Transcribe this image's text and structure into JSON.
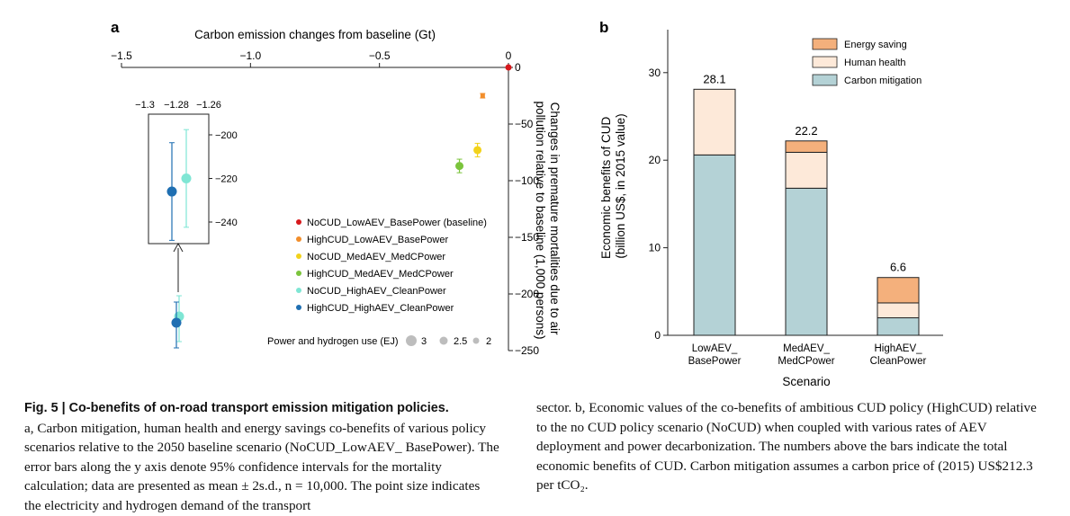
{
  "panel_a_letter": "a",
  "panel_b_letter": "b",
  "chart_data": [
    {
      "type": "scatter",
      "panel": "a",
      "xlabel": "Carbon emission changes from baseline (Gt)",
      "ylabel": "Changes in premature mortalities due to air pollution relative to baseline (1,000 persons)",
      "xlim": [
        -1.5,
        0
      ],
      "ylim": [
        -250,
        0
      ],
      "x_ticks": [
        -1.5,
        -1.0,
        -0.5,
        0
      ],
      "x_tick_labels": [
        "−1.5",
        "−1.0",
        "−0.5",
        "0"
      ],
      "y_ticks": [
        0,
        -50,
        -100,
        -150,
        -200,
        -250
      ],
      "y_tick_labels": [
        "0",
        "−50",
        "−100",
        "−150",
        "−200",
        "−250"
      ],
      "series": [
        {
          "name": "NoCUD_LowAEV_BasePower (baseline)",
          "color": "#d7191c",
          "x": 0.0,
          "y": 0,
          "err": 0,
          "energy_ej": 2
        },
        {
          "name": "HighCUD_LowAEV_BasePower",
          "color": "#f28e2b",
          "x": -0.1,
          "y": -25,
          "err": 2,
          "energy_ej": 2
        },
        {
          "name": "NoCUD_MedAEV_MedCPower",
          "color": "#f2d21b",
          "x": -0.12,
          "y": -73,
          "err": 6,
          "energy_ej": 2.5
        },
        {
          "name": "HighCUD_MedAEV_MedCPower",
          "color": "#7bc43c",
          "x": -0.19,
          "y": -87,
          "err": 6,
          "energy_ej": 2.5
        },
        {
          "name": "NoCUD_HighAEV_CleanPower",
          "color": "#7fe6d4",
          "x": -1.28,
          "y": -220,
          "err": 20,
          "energy_ej": 3
        },
        {
          "name": "HighCUD_HighAEV_CleanPower",
          "color": "#1f6fb2",
          "x": -1.295,
          "y": -226,
          "err": 20,
          "energy_ej": 3
        }
      ],
      "inset": {
        "xlim": [
          -1.3,
          -1.26
        ],
        "x_tick_labels": [
          "−1.3",
          "−1.28",
          "−1.26"
        ],
        "y_tick_labels": [
          "−200",
          "−220",
          "−240"
        ]
      },
      "size_legend": {
        "title": "Power and hydrogen use (EJ)",
        "items": [
          "3",
          "2.5",
          "2"
        ]
      }
    },
    {
      "type": "bar",
      "panel": "b",
      "stacked": true,
      "categories": [
        [
          "LowAEV_",
          "BasePower"
        ],
        [
          "MedAEV_",
          "MedCPower"
        ],
        [
          "HighAEV_",
          "CleanPower"
        ]
      ],
      "xlabel": "Scenario",
      "ylabel": "Economic benefits of CUD",
      "ylabel2": "(billion US$, in 2015 value)",
      "ylim": [
        0,
        35
      ],
      "y_ticks": [
        0,
        10,
        20,
        30
      ],
      "y_tick_labels": [
        "0",
        "10",
        "20",
        "30"
      ],
      "series": [
        {
          "name": "Carbon mitigation",
          "color": "#b4d2d6",
          "values": [
            20.6,
            16.8,
            2.0
          ]
        },
        {
          "name": "Human health",
          "color": "#fde9d9",
          "values": [
            7.5,
            4.1,
            1.7
          ]
        },
        {
          "name": "Energy saving",
          "color": "#f4b07c",
          "values": [
            0.0,
            1.3,
            2.9
          ]
        }
      ],
      "totals": [
        "28.1",
        "22.2",
        "6.6"
      ],
      "legend_order": [
        "Energy saving",
        "Human health",
        "Carbon mitigation"
      ]
    }
  ],
  "caption": {
    "fig_label": "Fig. 5 | Co-benefits of on-road transport emission mitigation policies.",
    "left_body": "a, Carbon mitigation, human health and energy savings co-benefits of various policy scenarios relative to the 2050 baseline scenario (NoCUD_LowAEV_ BasePower). The error bars along the y axis denote 95% confidence intervals for the mortality calculation; data are presented as mean ± 2s.d., n = 10,000. The point size indicates the electricity and hydrogen demand of the transport",
    "right_body": "sector. b, Economic values of the co-benefits of ambitious CUD policy (HighCUD) relative to the no CUD policy scenario (NoCUD) when coupled with various rates of AEV deployment and power decarbonization. The numbers above the bars indicate the total economic benefits of CUD. Carbon mitigation assumes a carbon price of (2015) US$212.3 per tCO₂."
  }
}
